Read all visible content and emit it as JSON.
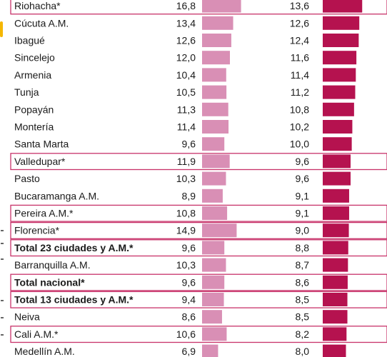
{
  "chart_data": {
    "type": "bar",
    "orientation": "horizontal",
    "colors": {
      "series_a": "#d98fb5",
      "series_b": "#b5124f",
      "highlight": "#c8336a",
      "side_tab": "#f5b700"
    },
    "rows": [
      {
        "label": "Riohacha*",
        "a": 16.8,
        "b": 13.6,
        "a_text": "16,8",
        "b_text": "13,6",
        "bold": false,
        "box": true
      },
      {
        "label": "Cúcuta A.M.",
        "a": 13.4,
        "b": 12.6,
        "a_text": "13,4",
        "b_text": "12,6",
        "bold": false,
        "box": false
      },
      {
        "label": "Ibagué",
        "a": 12.6,
        "b": 12.4,
        "a_text": "12,6",
        "b_text": "12,4",
        "bold": false,
        "box": false
      },
      {
        "label": "Sincelejo",
        "a": 12.0,
        "b": 11.6,
        "a_text": "12,0",
        "b_text": "11,6",
        "bold": false,
        "box": false
      },
      {
        "label": "Armenia",
        "a": 10.4,
        "b": 11.4,
        "a_text": "10,4",
        "b_text": "11,4",
        "bold": false,
        "box": false
      },
      {
        "label": "Tunja",
        "a": 10.5,
        "b": 11.2,
        "a_text": "10,5",
        "b_text": "11,2",
        "bold": false,
        "box": false
      },
      {
        "label": "Popayán",
        "a": 11.3,
        "b": 10.8,
        "a_text": "11,3",
        "b_text": "10,8",
        "bold": false,
        "box": false
      },
      {
        "label": "Montería",
        "a": 11.4,
        "b": 10.2,
        "a_text": "11,4",
        "b_text": "10,2",
        "bold": false,
        "box": false
      },
      {
        "label": "Santa Marta",
        "a": 9.6,
        "b": 10.0,
        "a_text": "9,6",
        "b_text": "10,0",
        "bold": false,
        "box": false
      },
      {
        "label": "Valledupar*",
        "a": 11.9,
        "b": 9.6,
        "a_text": "11,9",
        "b_text": "9,6",
        "bold": false,
        "box": true
      },
      {
        "label": "Pasto",
        "a": 10.3,
        "b": 9.6,
        "a_text": "10,3",
        "b_text": "9,6",
        "bold": false,
        "box": false
      },
      {
        "label": "Bucaramanga A.M.",
        "a": 8.9,
        "b": 9.1,
        "a_text": "8,9",
        "b_text": "9,1",
        "bold": false,
        "box": false
      },
      {
        "label": "Pereira A.M.*",
        "a": 10.8,
        "b": 9.1,
        "a_text": "10,8",
        "b_text": "9,1",
        "bold": false,
        "box": true
      },
      {
        "label": "Florencia*",
        "a": 14.9,
        "b": 9.0,
        "a_text": "14,9",
        "b_text": "9,0",
        "bold": false,
        "box": true
      },
      {
        "label": "Total 23 ciudades y A.M.*",
        "a": 9.6,
        "b": 8.8,
        "a_text": "9,6",
        "b_text": "8,8",
        "bold": true,
        "box": true
      },
      {
        "label": "Barranquilla A.M.",
        "a": 10.3,
        "b": 8.7,
        "a_text": "10,3",
        "b_text": "8,7",
        "bold": false,
        "box": false
      },
      {
        "label": "Total nacional*",
        "a": 9.6,
        "b": 8.6,
        "a_text": "9,6",
        "b_text": "8,6",
        "bold": true,
        "box": true
      },
      {
        "label": "Total 13 ciudades y A.M.*",
        "a": 9.4,
        "b": 8.5,
        "a_text": "9,4",
        "b_text": "8,5",
        "bold": true,
        "box": true
      },
      {
        "label": "Neiva",
        "a": 8.6,
        "b": 8.5,
        "a_text": "8,6",
        "b_text": "8,5",
        "bold": false,
        "box": false
      },
      {
        "label": "Cali A.M.*",
        "a": 10.6,
        "b": 8.2,
        "a_text": "10,6",
        "b_text": "8,2",
        "bold": false,
        "box": true
      },
      {
        "label": "Medellín A.M.",
        "a": 6.9,
        "b": 8.0,
        "a_text": "6,9",
        "b_text": "8,0",
        "bold": false,
        "box": false
      }
    ]
  }
}
